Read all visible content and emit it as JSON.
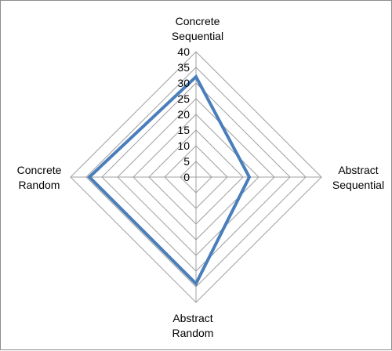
{
  "chart_data": {
    "type": "radar",
    "title": "",
    "categories": [
      "Concrete\nSequential",
      "Abstract\nSequential",
      "Abstract\nRandom",
      "Concrete\nRandom"
    ],
    "series": [
      {
        "values": [
          32,
          17,
          34,
          34
        ],
        "color": "#4a7ebb"
      }
    ],
    "rlim": [
      0,
      40
    ],
    "ticks": [
      0,
      5,
      10,
      15,
      20,
      25,
      30,
      35,
      40
    ],
    "grid": true,
    "grid_color": "#a0a0a0",
    "legend": "none"
  }
}
